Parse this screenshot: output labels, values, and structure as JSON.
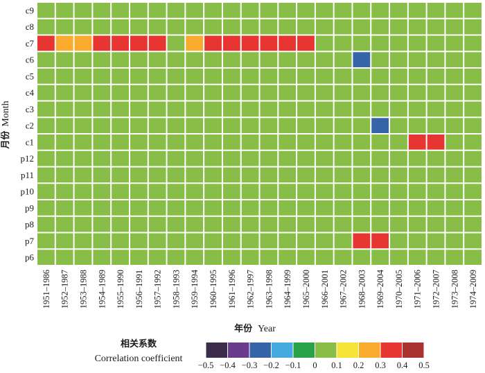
{
  "chart_data": {
    "type": "heatmap",
    "title": "",
    "xlabel_cn": "年份",
    "xlabel_en": "Year",
    "ylabel_cn": "月份",
    "ylabel_en": "Month",
    "rows": [
      "c9",
      "c8",
      "c7",
      "c6",
      "c5",
      "c4",
      "c3",
      "c2",
      "c1",
      "p12",
      "p11",
      "p10",
      "p9",
      "p8",
      "p7",
      "p6"
    ],
    "columns": [
      "1951–1986",
      "1952–1987",
      "1953–1988",
      "1954–1989",
      "1955–1990",
      "1956–1991",
      "1957–1992",
      "1958–1993",
      "1959–1994",
      "1960–1995",
      "1961–1996",
      "1962–1997",
      "1963–1998",
      "1964–1999",
      "1965–2000",
      "1966–2001",
      "1967–2002",
      "1968–2003",
      "1969–2004",
      "1970–2005",
      "1971–2006",
      "1972–2007",
      "1973–2008",
      "1974–2009"
    ],
    "values": [
      [
        0.05,
        0.05,
        0.05,
        0.05,
        0.05,
        0.05,
        0.05,
        0.05,
        0.05,
        0.05,
        0.05,
        0.05,
        0.05,
        0.05,
        0.05,
        0.05,
        0.05,
        0.05,
        0.05,
        0.05,
        0.05,
        0.05,
        0.05,
        0.05
      ],
      [
        0.05,
        0.05,
        0.05,
        0.05,
        0.05,
        0.05,
        0.05,
        0.05,
        0.05,
        0.05,
        0.05,
        0.05,
        0.05,
        0.05,
        0.05,
        0.05,
        0.05,
        0.05,
        0.05,
        0.05,
        0.05,
        0.05,
        0.05,
        0.05
      ],
      [
        0.35,
        0.25,
        0.25,
        0.35,
        0.35,
        0.35,
        0.35,
        0.05,
        0.25,
        0.35,
        0.35,
        0.35,
        0.35,
        0.35,
        0.35,
        0.05,
        0.05,
        0.05,
        0.05,
        0.05,
        0.05,
        0.05,
        0.05,
        0.05
      ],
      [
        0.05,
        0.05,
        0.05,
        0.05,
        0.05,
        0.05,
        0.05,
        0.05,
        0.05,
        0.05,
        0.05,
        0.05,
        0.05,
        0.05,
        0.05,
        0.05,
        0.05,
        -0.25,
        0.05,
        0.05,
        0.05,
        0.05,
        0.05,
        0.05
      ],
      [
        0.05,
        0.05,
        0.05,
        0.05,
        0.05,
        0.05,
        0.05,
        0.05,
        0.05,
        0.05,
        0.05,
        0.05,
        0.05,
        0.05,
        0.05,
        0.05,
        0.05,
        0.05,
        0.05,
        0.05,
        0.05,
        0.05,
        0.05,
        0.05
      ],
      [
        0.05,
        0.05,
        0.05,
        0.05,
        0.05,
        0.05,
        0.05,
        0.05,
        0.05,
        0.05,
        0.05,
        0.05,
        0.05,
        0.05,
        0.05,
        0.05,
        0.05,
        0.05,
        0.05,
        0.05,
        0.05,
        0.05,
        0.05,
        0.05
      ],
      [
        0.05,
        0.05,
        0.05,
        0.05,
        0.05,
        0.05,
        0.05,
        0.05,
        0.05,
        0.05,
        0.05,
        0.05,
        0.05,
        0.05,
        0.05,
        0.05,
        0.05,
        0.05,
        0.05,
        0.05,
        0.05,
        0.05,
        0.05,
        0.05
      ],
      [
        0.05,
        0.05,
        0.05,
        0.05,
        0.05,
        0.05,
        0.05,
        0.05,
        0.05,
        0.05,
        0.05,
        0.05,
        0.05,
        0.05,
        0.05,
        0.05,
        0.05,
        0.05,
        -0.25,
        0.05,
        0.05,
        0.05,
        0.05,
        0.05
      ],
      [
        0.05,
        0.05,
        0.05,
        0.05,
        0.05,
        0.05,
        0.05,
        0.05,
        0.05,
        0.05,
        0.05,
        0.05,
        0.05,
        0.05,
        0.05,
        0.05,
        0.05,
        0.05,
        0.05,
        0.05,
        0.35,
        0.35,
        0.05,
        0.05
      ],
      [
        0.05,
        0.05,
        0.05,
        0.05,
        0.05,
        0.05,
        0.05,
        0.05,
        0.05,
        0.05,
        0.05,
        0.05,
        0.05,
        0.05,
        0.05,
        0.05,
        0.05,
        0.05,
        0.05,
        0.05,
        0.05,
        0.05,
        0.05,
        0.05
      ],
      [
        0.05,
        0.05,
        0.05,
        0.05,
        0.05,
        0.05,
        0.05,
        0.05,
        0.05,
        0.05,
        0.05,
        0.05,
        0.05,
        0.05,
        0.05,
        0.05,
        0.05,
        0.05,
        0.05,
        0.05,
        0.05,
        0.05,
        0.05,
        0.05
      ],
      [
        0.05,
        0.05,
        0.05,
        0.05,
        0.05,
        0.05,
        0.05,
        0.05,
        0.05,
        0.05,
        0.05,
        0.05,
        0.05,
        0.05,
        0.05,
        0.05,
        0.05,
        0.05,
        0.05,
        0.05,
        0.05,
        0.05,
        0.05,
        0.05
      ],
      [
        0.05,
        0.05,
        0.05,
        0.05,
        0.05,
        0.05,
        0.05,
        0.05,
        0.05,
        0.05,
        0.05,
        0.05,
        0.05,
        0.05,
        0.05,
        0.05,
        0.05,
        0.05,
        0.05,
        0.05,
        0.05,
        0.05,
        0.05,
        0.05
      ],
      [
        0.05,
        0.05,
        0.05,
        0.05,
        0.05,
        0.05,
        0.05,
        0.05,
        0.05,
        0.05,
        0.05,
        0.05,
        0.05,
        0.05,
        0.05,
        0.05,
        0.05,
        0.05,
        0.05,
        0.05,
        0.05,
        0.05,
        0.05,
        0.05
      ],
      [
        0.05,
        0.05,
        0.05,
        0.05,
        0.05,
        0.05,
        0.05,
        0.05,
        0.05,
        0.05,
        0.05,
        0.05,
        0.05,
        0.05,
        0.05,
        0.05,
        0.05,
        0.35,
        0.35,
        0.05,
        0.05,
        0.05,
        0.05,
        0.05
      ],
      [
        0.05,
        0.05,
        0.05,
        0.05,
        0.05,
        0.05,
        0.05,
        0.05,
        0.05,
        0.05,
        0.05,
        0.05,
        0.05,
        0.05,
        0.05,
        0.05,
        0.05,
        0.05,
        0.05,
        0.05,
        0.05,
        0.05,
        0.05,
        0.05
      ]
    ],
    "legend": {
      "title_cn": "相关系数",
      "title_en": "Correlation coefficient",
      "bins": [
        -0.5,
        -0.4,
        -0.3,
        -0.2,
        -0.1,
        0,
        0.1,
        0.2,
        0.3,
        0.4,
        0.5
      ],
      "tick_labels": [
        "−0.5",
        "−0.4",
        "−0.3",
        "−0.2",
        "−0.1",
        "0",
        "0.1",
        "0.2",
        "0.3",
        "0.4",
        "0.5"
      ],
      "colors": [
        "#3d2b4b",
        "#6a3a8c",
        "#3564a8",
        "#45aadf",
        "#2aa24a",
        "#88bd48",
        "#f5e335",
        "#f8ab2c",
        "#e73532",
        "#a83331"
      ]
    }
  }
}
